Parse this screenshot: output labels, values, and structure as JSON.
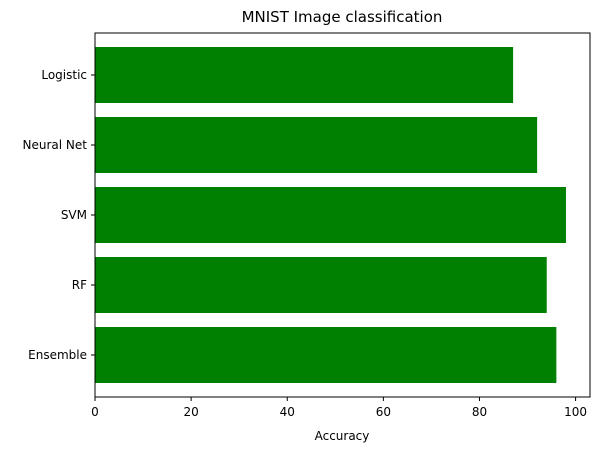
{
  "chart_data": {
    "type": "bar",
    "orientation": "horizontal",
    "title": "MNIST Image classification",
    "xlabel": "Accuracy",
    "ylabel": "",
    "categories": [
      "Logistic",
      "Neural Net",
      "SVM",
      "RF",
      "Ensemble"
    ],
    "values": [
      87,
      92,
      98,
      94,
      96
    ],
    "xlim": [
      0,
      103
    ],
    "xticks": [
      0,
      20,
      40,
      60,
      80,
      100
    ],
    "bar_color": "#008000",
    "grid": false
  }
}
